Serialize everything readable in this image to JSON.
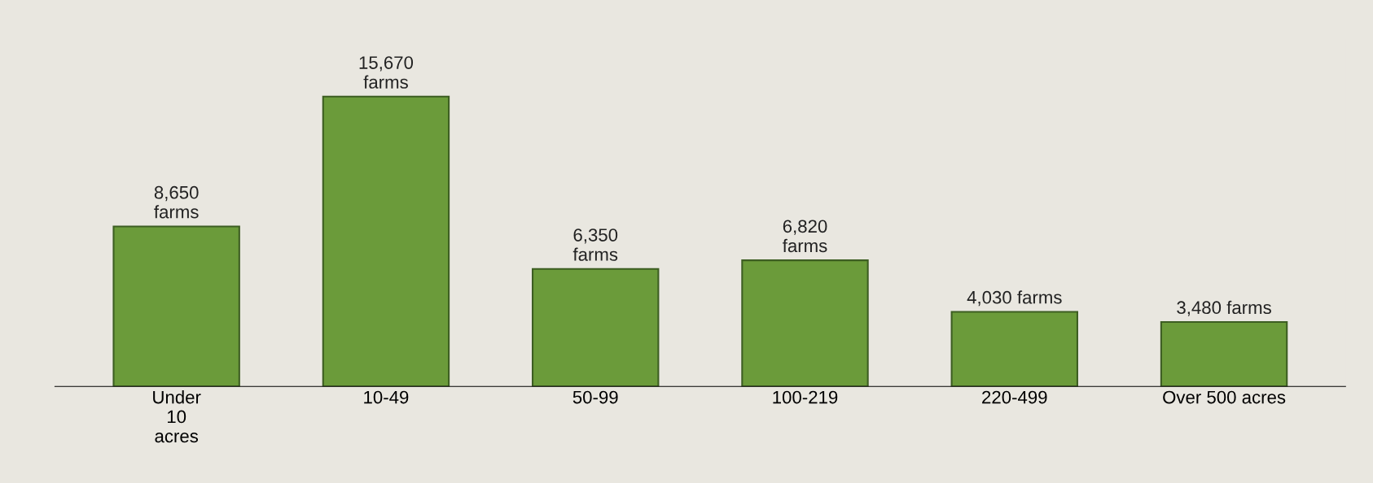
{
  "chart_data": {
    "type": "bar",
    "categories": [
      "Under\n10\nacres",
      "10-49",
      "50-99",
      "100-219",
      "220-499",
      "Over 500 acres"
    ],
    "values": [
      8650,
      15670,
      6350,
      6820,
      4030,
      3480
    ],
    "value_labels": [
      "8,650\nfarms",
      "15,670\nfarms",
      "6,350\nfarms",
      "6,820\nfarms",
      "4,030 farms",
      "3,480 farms"
    ],
    "color": "#6b9b3a",
    "tick_labels": "x",
    "grid": false,
    "legend": false
  }
}
